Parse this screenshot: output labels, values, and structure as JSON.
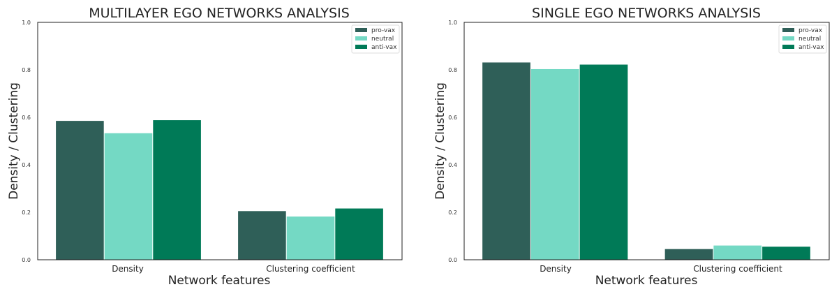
{
  "chart_data": [
    {
      "type": "bar",
      "title": "MULTILAYER EGO NETWORKS ANALYSIS",
      "xlabel": "Network features",
      "ylabel": "Density / Clustering",
      "categories": [
        "Density",
        "Clustering coefficient"
      ],
      "series": [
        {
          "name": "pro-vax",
          "color": "#2f5f58",
          "values": [
            0.585,
            0.205
          ]
        },
        {
          "name": "neutral",
          "color": "#74d9c4",
          "values": [
            0.533,
            0.182
          ]
        },
        {
          "name": "anti-vax",
          "color": "#007a57",
          "values": [
            0.588,
            0.216
          ]
        }
      ],
      "ylim": [
        0,
        1.0
      ],
      "yticks": [
        "0.0",
        "0.2",
        "0.4",
        "0.6",
        "0.8",
        "1.0"
      ],
      "legend": "top-right",
      "grid": false
    },
    {
      "type": "bar",
      "title": "SINGLE EGO NETWORKS ANALYSIS",
      "xlabel": "Network features",
      "ylabel": "Density / Clustering",
      "categories": [
        "Density",
        "Clustering coefficient"
      ],
      "series": [
        {
          "name": "pro-vax",
          "color": "#2f5f58",
          "values": [
            0.831,
            0.045
          ]
        },
        {
          "name": "neutral",
          "color": "#74d9c4",
          "values": [
            0.803,
            0.06
          ]
        },
        {
          "name": "anti-vax",
          "color": "#007a57",
          "values": [
            0.822,
            0.055
          ]
        }
      ],
      "ylim": [
        0,
        1.0
      ],
      "yticks": [
        "0.0",
        "0.2",
        "0.4",
        "0.6",
        "0.8",
        "1.0"
      ],
      "legend": "top-right",
      "grid": false
    }
  ]
}
